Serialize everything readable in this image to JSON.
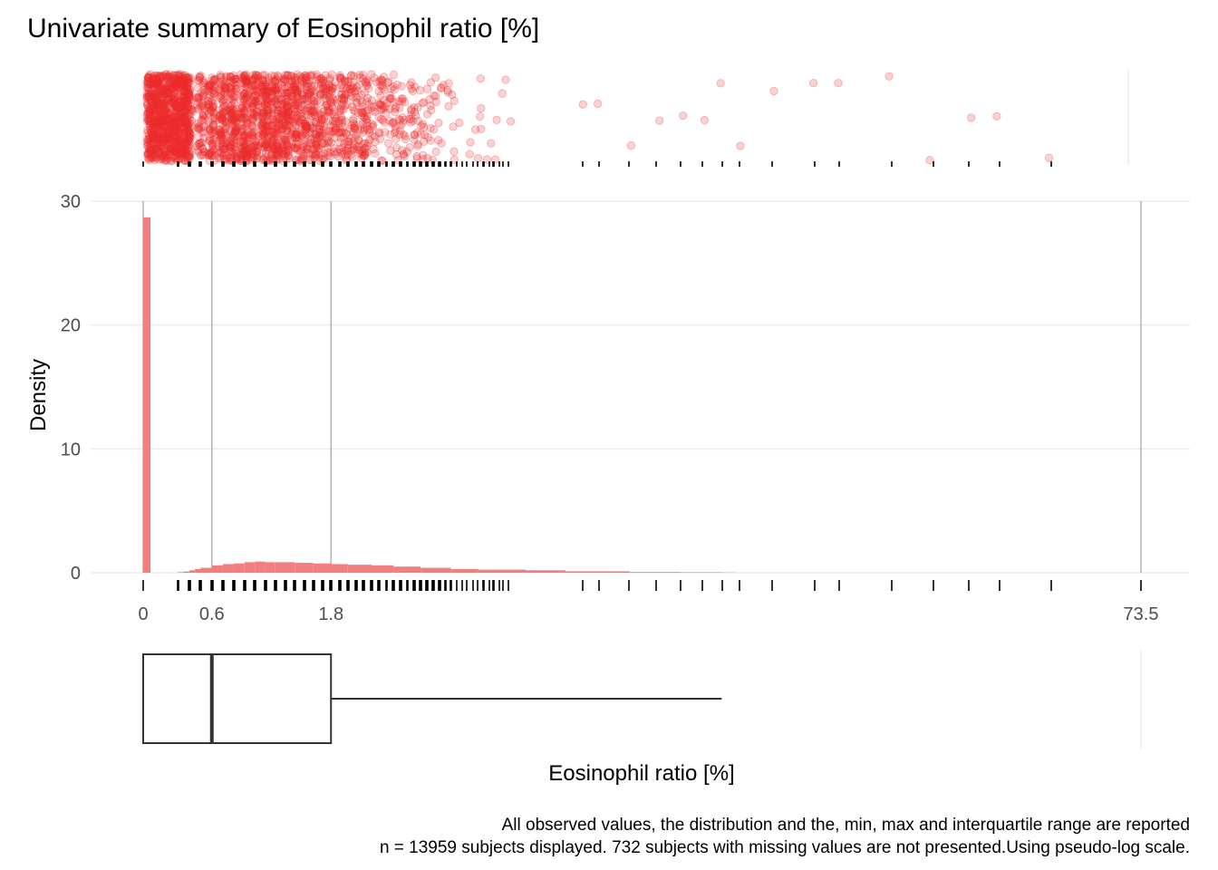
{
  "chart_data": {
    "type": "histogram",
    "title": "Univariate summary of Eosinophil ratio [%]",
    "xlabel": "Eosinophil ratio [%]",
    "ylabel": "Density",
    "x_scale": "pseudo-log",
    "x_ticks": [
      0,
      0.6,
      1.8,
      73.5
    ],
    "x_tick_labels": [
      "0",
      "0.6",
      "1.8",
      "73.5"
    ],
    "y_ticks": [
      0,
      10,
      20,
      30
    ],
    "y_tick_labels": [
      "0",
      "10",
      "20",
      "30"
    ],
    "ylim": [
      0,
      30
    ],
    "xlim": [
      0,
      73.5
    ],
    "grid": true,
    "n_subjects": 13959,
    "n_missing": 732,
    "summary": {
      "min": 0,
      "q1": 0,
      "median": 0.6,
      "q3": 1.8,
      "upper_whisker": 12,
      "max": 73.5
    },
    "histogram_bins": [
      {
        "x": 0.0,
        "density": 28.7
      },
      {
        "x": 0.3,
        "density": 0.05
      },
      {
        "x": 0.35,
        "density": 0.1
      },
      {
        "x": 0.4,
        "density": 0.2
      },
      {
        "x": 0.45,
        "density": 0.3
      },
      {
        "x": 0.5,
        "density": 0.4
      },
      {
        "x": 0.6,
        "density": 0.6
      },
      {
        "x": 0.7,
        "density": 0.7
      },
      {
        "x": 0.8,
        "density": 0.75
      },
      {
        "x": 0.9,
        "density": 0.85
      },
      {
        "x": 1.0,
        "density": 0.9
      },
      {
        "x": 1.1,
        "density": 0.85
      },
      {
        "x": 1.2,
        "density": 0.85
      },
      {
        "x": 1.4,
        "density": 0.8
      },
      {
        "x": 1.6,
        "density": 0.75
      },
      {
        "x": 1.8,
        "density": 0.7
      },
      {
        "x": 2.0,
        "density": 0.65
      },
      {
        "x": 2.3,
        "density": 0.6
      },
      {
        "x": 2.6,
        "density": 0.5
      },
      {
        "x": 3.0,
        "density": 0.4
      },
      {
        "x": 3.5,
        "density": 0.3
      },
      {
        "x": 4.0,
        "density": 0.25
      },
      {
        "x": 5.0,
        "density": 0.2
      },
      {
        "x": 6.0,
        "density": 0.12
      },
      {
        "x": 8.0,
        "density": 0.06
      },
      {
        "x": 10.0,
        "density": 0.04
      },
      {
        "x": 12.0,
        "density": 0.02
      }
    ],
    "colors": {
      "points": "#EE2C2C",
      "bars": "#F08080",
      "rug": "#000000",
      "grid": "#ebebeb",
      "vline": "#b3b3b3",
      "box": "#333333"
    }
  },
  "caption": {
    "line1": "All observed values, the distribution and the, min, max and interquartile range are reported",
    "line2": "n = 13959 subjects displayed. 732 subjects with missing values are not presented.Using pseudo-log scale."
  }
}
